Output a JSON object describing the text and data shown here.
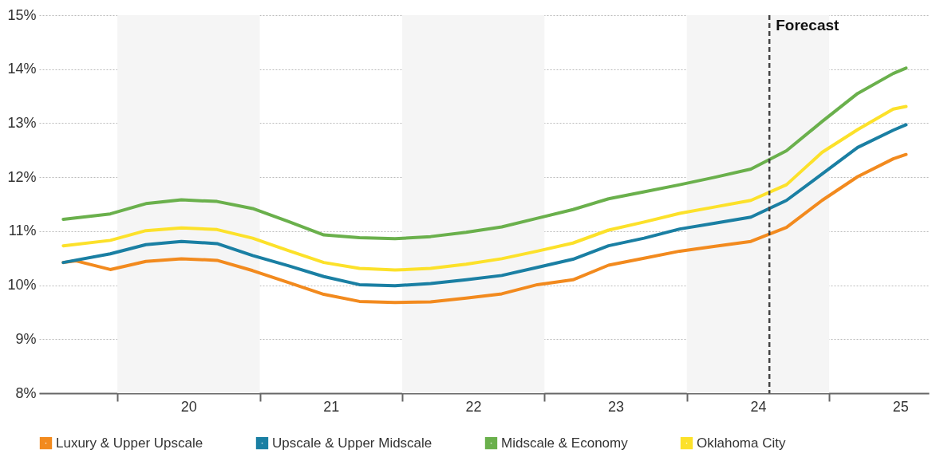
{
  "chart_data": {
    "type": "line",
    "x": [
      19.12,
      19.45,
      19.7,
      19.95,
      20.2,
      20.45,
      20.7,
      20.95,
      21.2,
      21.45,
      21.7,
      21.95,
      22.2,
      22.45,
      22.7,
      22.95,
      23.2,
      23.45,
      23.7,
      23.95,
      24.2,
      24.45,
      24.7,
      24.95,
      25.04
    ],
    "series": [
      {
        "name": "Luxury & Upper Upscale",
        "color": "#f28a1e",
        "x": [
          19.12,
          19.21,
          19.45,
          19.7,
          19.95,
          20.2,
          20.45,
          20.7,
          20.95,
          21.2,
          21.45,
          21.7,
          21.95,
          22.2,
          22.45,
          22.7,
          22.95,
          23.2,
          23.45,
          23.7,
          23.95,
          24.2,
          24.45,
          24.7,
          24.95,
          25.04
        ],
        "values": [
          10.42,
          10.45,
          10.29,
          10.44,
          10.49,
          10.46,
          10.27,
          10.05,
          9.83,
          9.7,
          9.68,
          9.69,
          9.76,
          9.84,
          10.01,
          10.1,
          10.37,
          10.5,
          10.63,
          10.72,
          10.81,
          11.07,
          11.57,
          12.01,
          12.34,
          12.42
        ]
      },
      {
        "name": "Upscale & Upper Midscale",
        "color": "#1a7fa3",
        "values": [
          10.42,
          10.58,
          10.75,
          10.81,
          10.77,
          10.55,
          10.36,
          10.16,
          10.01,
          9.99,
          10.03,
          10.1,
          10.18,
          10.33,
          10.48,
          10.73,
          10.87,
          11.04,
          11.15,
          11.26,
          11.57,
          12.06,
          12.55,
          12.87,
          12.97
        ]
      },
      {
        "name": "Midscale & Economy",
        "color": "#6ab04c",
        "values": [
          11.22,
          11.32,
          11.51,
          11.58,
          11.55,
          11.42,
          11.18,
          10.93,
          10.88,
          10.86,
          10.9,
          10.98,
          11.08,
          11.24,
          11.4,
          11.6,
          11.73,
          11.86,
          12.0,
          12.15,
          12.49,
          13.03,
          13.55,
          13.92,
          14.02
        ]
      },
      {
        "name": "Oklahoma City",
        "color": "#fce12a",
        "values": [
          10.73,
          10.83,
          11.01,
          11.06,
          11.03,
          10.87,
          10.64,
          10.42,
          10.31,
          10.28,
          10.31,
          10.39,
          10.49,
          10.63,
          10.78,
          11.02,
          11.17,
          11.33,
          11.45,
          11.57,
          11.86,
          12.46,
          12.88,
          13.26,
          13.31
        ]
      }
    ],
    "xlim": [
      18.95,
      25.2
    ],
    "xticks": [
      {
        "value": 19.5,
        "label": null
      },
      20,
      {
        "value": 20.5,
        "label": null
      },
      21,
      {
        "value": 21.5,
        "label": null
      },
      22,
      {
        "value": 22.5,
        "label": null
      },
      23,
      {
        "value": 23.5,
        "label": null
      },
      24,
      {
        "value": 24.5,
        "label": null
      },
      25
    ],
    "ylim": [
      8,
      15
    ],
    "yticks": [
      {
        "value": 8,
        "label": "8%"
      },
      {
        "value": 9,
        "label": "9%"
      },
      {
        "value": 10,
        "label": "10%"
      },
      {
        "value": 11,
        "label": "11%"
      },
      {
        "value": 12,
        "label": "12%"
      },
      {
        "value": 13,
        "label": "13%"
      },
      {
        "value": 14,
        "label": "14%"
      },
      {
        "value": 15,
        "label": "15%"
      }
    ],
    "bands": [
      {
        "axis": "x",
        "from": 19.5,
        "to": 20.5,
        "color": "#f5f5f5"
      },
      {
        "axis": "x",
        "from": 21.5,
        "to": 22.5,
        "color": "#f5f5f5"
      },
      {
        "axis": "x",
        "from": 23.5,
        "to": 24.5,
        "color": "#f5f5f5"
      }
    ],
    "ref_lines": [
      {
        "axis": "x",
        "value": 24.08,
        "label": "Forecast",
        "color": "#444444",
        "line_style": "dashed"
      }
    ],
    "grid": "y",
    "legend": "bottom",
    "line_style": "solid",
    "marker": "none"
  }
}
